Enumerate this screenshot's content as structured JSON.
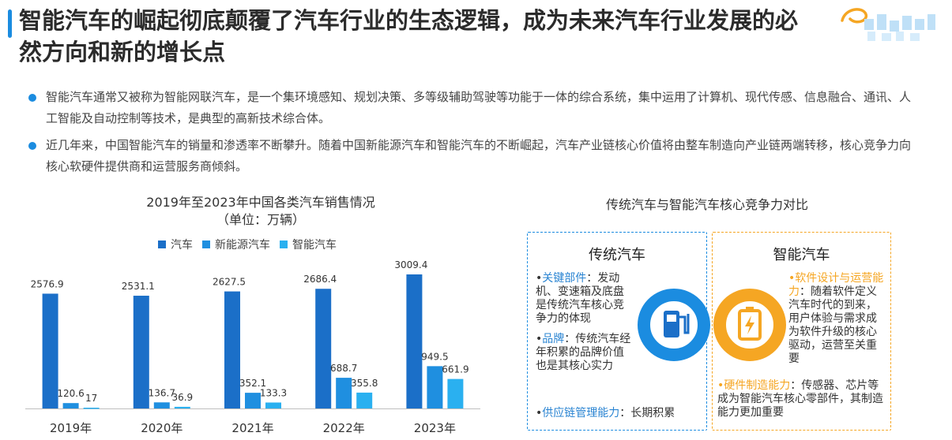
{
  "header": {
    "title": "智能汽车的崛起彻底颠覆了汽车行业的生态逻辑，成为未来汽车行业发展的必然方向和新的增长点"
  },
  "bullets": [
    "智能汽车通常又被称为智能网联汽车，是一个集环境感知、规划决策、多等级辅助驾驶等功能于一体的综合系统，集中运用了计算机、现代传感、信息融合、通讯、人工智能及自动控制等技术，是典型的高新技术综合体。",
    "近几年来，中国智能汽车的销量和渗透率不断攀升。随着中国新能源汽车和智能汽车的不断崛起，汽车产业链核心价值将由整车制造向产业链两端转移，核心竞争力向核心软硬件提供商和运营服务商倾斜。"
  ],
  "chart_data": {
    "type": "bar",
    "title": "2019年至2023年中国各类汽车销售情况",
    "subtitle": "（单位：万辆）",
    "categories": [
      "2019年",
      "2020年",
      "2021年",
      "2022年",
      "2023年"
    ],
    "series": [
      {
        "name": "汽车",
        "values": [
          2576.9,
          2531.1,
          2627.5,
          2686.4,
          3009.4
        ],
        "color": "#1b6fc8"
      },
      {
        "name": "新能源汽车",
        "values": [
          120.6,
          136.7,
          352.1,
          688.7,
          949.5
        ],
        "color": "#1f8fe0"
      },
      {
        "name": "智能汽车",
        "values": [
          17,
          36.9,
          133.3,
          355.8,
          661.9
        ],
        "color": "#2ab0f0"
      }
    ],
    "ylim": [
      0,
      3009.4
    ],
    "grid": false,
    "legend": "top"
  },
  "comparison": {
    "title": "传统汽车与智能汽车核心竞争力对比",
    "left": {
      "heading": "传统汽车",
      "items": [
        {
          "key": "关键部件",
          "text": "：发动机、变速箱及底盘是传统汽车核心竞争力的体现"
        },
        {
          "key": "品牌",
          "text": "：传统汽车经年积累的品牌价值也是其核心实力"
        },
        {
          "key": "供应链管理能力",
          "text": "：长期积累"
        }
      ]
    },
    "right": {
      "heading": "智能汽车",
      "items": [
        {
          "key": "软件设计与运营能力",
          "text": "：随着软件定义汽车时代的到来，用户体验与需求成为软件升级的核心驱动，运营至关重要"
        },
        {
          "key": "硬件制造能力",
          "text": "：传感器、芯片等成为智能汽车核心零部件，其制造能力更加重要"
        }
      ]
    },
    "colors": {
      "left": "#1b8ce0",
      "right": "#f5a623"
    },
    "icons": {
      "left": "fuel-pump-icon",
      "right": "battery-charge-icon"
    }
  }
}
